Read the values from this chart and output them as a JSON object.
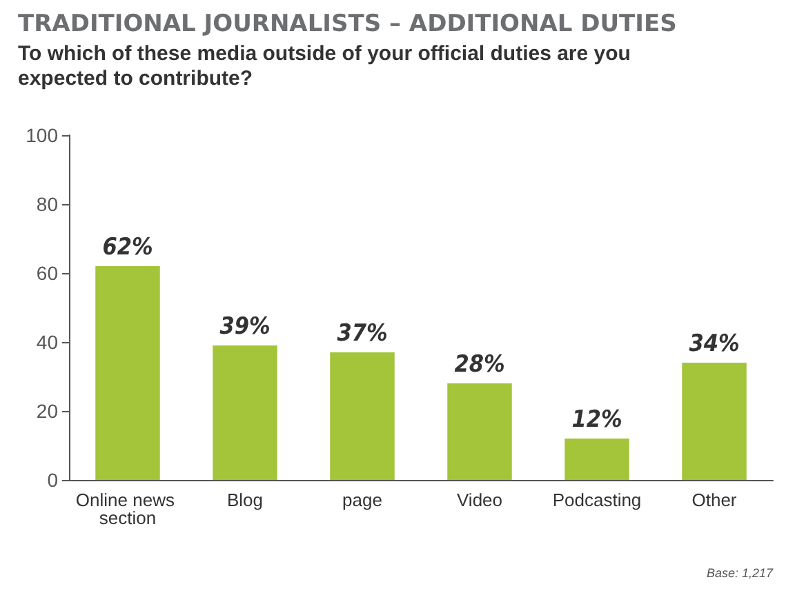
{
  "chart_data": {
    "type": "bar",
    "title": "TRADITIONAL JOURNALISTS – ADDITIONAL DUTIES",
    "subtitle": "To which of these media outside of your official duties are you expected to contribute?",
    "categories": [
      "Online news section",
      "Blog",
      "page",
      "Video",
      "Podcasting",
      "Other"
    ],
    "values": [
      62,
      39,
      37,
      28,
      12,
      34
    ],
    "value_labels": [
      "62%",
      "39%",
      "37%",
      "28%",
      "12%",
      "34%"
    ],
    "color": "#a4c43a",
    "ylim": [
      0,
      100
    ],
    "yticks": [
      0,
      20,
      40,
      60,
      80,
      100
    ],
    "grid": false,
    "annotations": [
      "Base: 1,217"
    ]
  }
}
